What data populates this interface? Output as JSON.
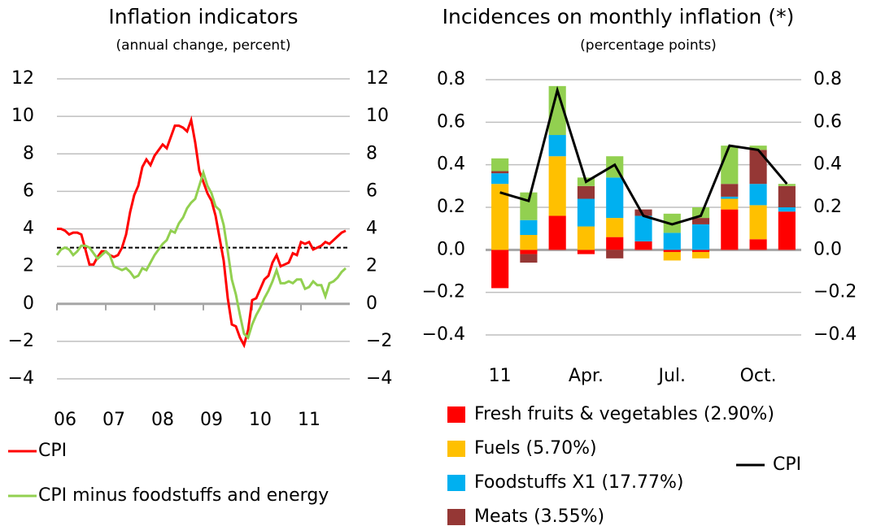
{
  "chart_data": [
    {
      "type": "line",
      "title": "Inflation indicators",
      "subtitle": "(annual change, percent)",
      "categories": [
        "06",
        null,
        null,
        null,
        null,
        null,
        null,
        null,
        null,
        null,
        null,
        null,
        "07",
        null,
        null,
        null,
        null,
        null,
        null,
        null,
        null,
        null,
        null,
        null,
        "08",
        null,
        null,
        null,
        null,
        null,
        null,
        null,
        null,
        null,
        null,
        null,
        "09",
        null,
        null,
        null,
        null,
        null,
        null,
        null,
        null,
        null,
        null,
        null,
        "10",
        null,
        null,
        null,
        null,
        null,
        null,
        null,
        null,
        null,
        null,
        null,
        "11",
        null,
        null,
        null,
        null,
        null,
        null,
        null,
        null,
        null,
        null,
        null
      ],
      "series": [
        {
          "name": "CPI",
          "color": "#ff0000",
          "values": [
            4.0,
            4.0,
            3.9,
            3.7,
            3.8,
            3.8,
            3.7,
            2.9,
            2.1,
            2.1,
            2.5,
            2.8,
            2.8,
            2.6,
            2.5,
            2.6,
            3.0,
            3.7,
            4.9,
            5.8,
            6.3,
            7.3,
            7.7,
            7.4,
            7.9,
            8.2,
            8.5,
            8.3,
            8.9,
            9.5,
            9.5,
            9.4,
            9.2,
            9.8,
            8.6,
            7.1,
            6.5,
            5.9,
            5.5,
            4.7,
            3.5,
            2.3,
            0.3,
            -1.1,
            -1.2,
            -1.8,
            -2.2,
            -1.4,
            0.2,
            0.3,
            0.8,
            1.3,
            1.5,
            2.2,
            2.6,
            2.0,
            2.1,
            2.2,
            2.7,
            2.6,
            3.3,
            3.2,
            3.3,
            2.9,
            3.0,
            3.1,
            3.3,
            3.2,
            3.4,
            3.6,
            3.8,
            3.9
          ]
        },
        {
          "name": "CPI minus foodstuffs and energy",
          "color": "#92d050",
          "values": [
            2.6,
            2.9,
            3.0,
            2.9,
            2.6,
            2.8,
            3.1,
            3.1,
            3.0,
            2.7,
            2.4,
            2.6,
            2.8,
            2.6,
            2.0,
            1.9,
            1.8,
            1.9,
            1.7,
            1.4,
            1.5,
            1.9,
            1.8,
            2.2,
            2.6,
            2.9,
            3.2,
            3.4,
            3.9,
            3.8,
            4.3,
            4.6,
            5.1,
            5.4,
            5.6,
            6.3,
            7.0,
            6.3,
            5.9,
            5.2,
            5.0,
            4.2,
            2.8,
            1.3,
            0.5,
            -0.6,
            -1.6,
            -1.8,
            -1.1,
            -0.6,
            -0.2,
            0.3,
            0.7,
            1.2,
            1.8,
            1.1,
            1.1,
            1.2,
            1.1,
            1.3,
            1.3,
            0.8,
            0.9,
            1.2,
            1.0,
            1.0,
            0.4,
            1.1,
            1.2,
            1.4,
            1.7,
            1.9
          ]
        }
      ],
      "target": 3,
      "ylim": [
        -4,
        12
      ],
      "yticks": [
        {
          "value": -4,
          "label": "−4"
        },
        {
          "value": -2,
          "label": "−2"
        },
        0,
        2,
        4,
        6,
        8,
        10,
        12
      ],
      "grid": true
    },
    {
      "type": "bar",
      "title": "Incidences on monthly inflation (*)",
      "subtitle": "(percentage points)",
      "categories": [
        "11",
        null,
        null,
        "Apr.",
        null,
        null,
        "Jul.",
        null,
        null,
        "Oct.",
        null
      ],
      "series": [
        {
          "name": "Fresh fruits & vegetables (2.90%)",
          "color": "#ff0000",
          "values": [
            -0.18,
            -0.02,
            0.16,
            -0.02,
            0.06,
            0.04,
            -0.01,
            -0.01,
            0.19,
            0.05,
            0.18
          ]
        },
        {
          "name": "Fuels (5.70%)",
          "color": "#ffc000",
          "values": [
            0.31,
            0.07,
            0.28,
            0.11,
            0.09,
            0.0,
            -0.04,
            -0.03,
            0.05,
            0.16,
            0.0
          ]
        },
        {
          "name": "Foodstuffs X1 (17.77%)",
          "color": "#00b0f0",
          "values": [
            0.05,
            0.07,
            0.1,
            0.13,
            0.19,
            0.12,
            0.08,
            0.12,
            0.01,
            0.1,
            0.02
          ]
        },
        {
          "name": "Meats (3.55%)",
          "color": "#953735",
          "values": [
            0.01,
            -0.04,
            0.0,
            0.06,
            -0.04,
            0.03,
            0.0,
            0.03,
            0.06,
            0.16,
            0.1
          ]
        },
        {
          "color": "#92d050",
          "values": [
            0.06,
            0.13,
            0.23,
            0.04,
            0.1,
            0.0,
            0.09,
            0.05,
            0.18,
            0.02,
            0.01
          ]
        },
        {
          "name": "CPI",
          "color": "#000000",
          "type": "line",
          "values": [
            0.27,
            0.23,
            0.75,
            0.32,
            0.4,
            0.16,
            0.12,
            0.16,
            0.49,
            0.47,
            0.31
          ]
        }
      ],
      "ylim": [
        -0.4,
        0.8
      ],
      "yticks": [
        {
          "value": -0.4,
          "label": "−0.4"
        },
        {
          "value": -0.2,
          "label": "−0.2"
        },
        {
          "value": 0,
          "label": "0.0"
        },
        0.2,
        0.4,
        0.6,
        0.8
      ],
      "grid": true
    }
  ]
}
